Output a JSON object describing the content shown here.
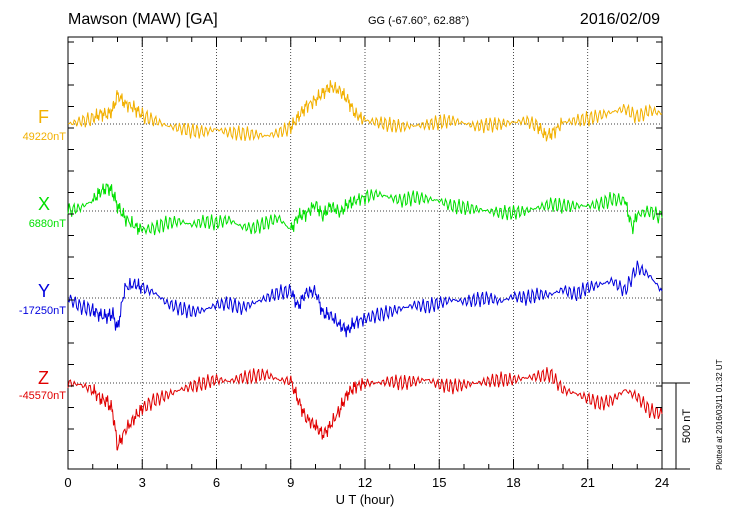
{
  "header": {
    "station": "Mawson (MAW)  [GA]",
    "coords": "GG (-67.60°,  62.88°)",
    "date": "2016/02/09"
  },
  "plotted_note": "Plotted at 2016/03/11 01:32 UT",
  "scale_label": "500 nT",
  "colors": {
    "F": "#f2b000",
    "X": "#00e000",
    "Y": "#0000dd",
    "Z": "#e00000"
  },
  "chart_data": {
    "type": "line",
    "xlabel": "U T (hour)",
    "xlim": [
      0,
      24
    ],
    "xticks": [
      "0",
      "3",
      "6",
      "9",
      "12",
      "15",
      "18",
      "21",
      "24"
    ],
    "grid": true,
    "scale_bar_nT": 500,
    "components": [
      {
        "letter": "F",
        "baseline_label": "49220nT",
        "baseline_nT": 49220
      },
      {
        "letter": "X",
        "baseline_label": "6880nT",
        "baseline_nT": 6880
      },
      {
        "letter": "Y",
        "baseline_label": "-17250nT",
        "baseline_nT": -17250
      },
      {
        "letter": "Z",
        "baseline_label": "-45570nT",
        "baseline_nT": -45570
      }
    ],
    "series": [
      {
        "name": "F",
        "x": [
          0,
          0.5,
          1,
          1.3,
          1.6,
          1.8,
          2.0,
          2.3,
          2.7,
          3.0,
          3.5,
          4,
          4.5,
          5,
          5.5,
          6,
          6.5,
          7,
          7.5,
          8,
          8.5,
          9,
          9.3,
          9.6,
          10,
          10.3,
          10.6,
          11,
          11.3,
          11.6,
          12,
          12.5,
          13,
          13.5,
          14,
          14.5,
          15,
          15.5,
          16,
          16.5,
          17,
          17.5,
          18,
          18.5,
          19,
          19.3,
          19.6,
          20,
          20.5,
          21,
          21.5,
          22,
          22.5,
          23,
          23.5,
          24
        ],
        "y": [
          0,
          15,
          30,
          60,
          55,
          80,
          170,
          120,
          90,
          50,
          20,
          -10,
          -25,
          -40,
          -45,
          -30,
          -50,
          -55,
          -60,
          -70,
          -50,
          -20,
          40,
          100,
          140,
          180,
          220,
          190,
          140,
          60,
          20,
          10,
          -5,
          -15,
          -10,
          -5,
          10,
          20,
          5,
          -15,
          -5,
          0,
          10,
          20,
          -15,
          -70,
          -50,
          10,
          20,
          30,
          50,
          70,
          90,
          40,
          80,
          60
        ]
      },
      {
        "name": "X",
        "x": [
          0,
          0.5,
          1,
          1.3,
          1.6,
          1.8,
          2.0,
          2.3,
          2.7,
          3.0,
          3.5,
          4,
          4.5,
          5,
          5.5,
          6,
          6.5,
          7,
          7.5,
          8,
          8.5,
          9,
          9.3,
          9.6,
          10,
          10.3,
          10.6,
          11,
          11.3,
          11.6,
          12,
          12.5,
          13,
          13.5,
          14,
          14.5,
          15,
          15.5,
          16,
          16.5,
          17,
          17.5,
          18,
          18.5,
          19,
          19.5,
          20,
          20.5,
          21,
          21.5,
          22,
          22.5,
          22.8,
          23,
          23.5,
          24
        ],
        "y": [
          0,
          20,
          60,
          110,
          140,
          110,
          30,
          -40,
          -90,
          -110,
          -100,
          -70,
          -60,
          -80,
          -60,
          -70,
          -50,
          -90,
          -100,
          -70,
          -40,
          -110,
          -30,
          -20,
          40,
          -30,
          30,
          -10,
          40,
          60,
          80,
          100,
          80,
          60,
          80,
          70,
          60,
          30,
          20,
          10,
          0,
          -10,
          -10,
          0,
          20,
          40,
          30,
          30,
          30,
          40,
          70,
          60,
          -100,
          -20,
          0,
          -40
        ]
      },
      {
        "name": "Y",
        "x": [
          0,
          0.5,
          1,
          1.3,
          1.6,
          1.8,
          2.0,
          2.3,
          2.7,
          3.0,
          3.5,
          4,
          4.5,
          5,
          5.5,
          6,
          6.5,
          7,
          7.5,
          8,
          8.5,
          9,
          9.3,
          9.6,
          10,
          10.3,
          10.6,
          11,
          11.3,
          11.6,
          12,
          12.5,
          13,
          13.5,
          14,
          14.5,
          15,
          15.5,
          16,
          16.5,
          17,
          17.5,
          18,
          18.5,
          19,
          19.5,
          20,
          20.5,
          21,
          21.5,
          22,
          22.5,
          23,
          23.5,
          24
        ],
        "y": [
          0,
          -50,
          -70,
          -100,
          -110,
          -90,
          -180,
          60,
          80,
          60,
          30,
          -30,
          -60,
          -80,
          -70,
          -40,
          -30,
          -60,
          -30,
          0,
          30,
          40,
          -50,
          30,
          40,
          -90,
          -100,
          -160,
          -190,
          -140,
          -120,
          -100,
          -80,
          -60,
          -40,
          -50,
          -30,
          -10,
          -20,
          -10,
          0,
          -20,
          10,
          0,
          20,
          20,
          50,
          20,
          60,
          80,
          100,
          40,
          180,
          130,
          40
        ]
      },
      {
        "name": "Z",
        "x": [
          0,
          0.5,
          1,
          1.3,
          1.6,
          1.8,
          2.0,
          2.3,
          2.7,
          3.0,
          3.5,
          4,
          4.5,
          5,
          5.5,
          6,
          6.5,
          7,
          7.5,
          8,
          8.5,
          9,
          9.3,
          9.6,
          10,
          10.3,
          10.6,
          11,
          11.3,
          11.6,
          12,
          12.5,
          13,
          13.5,
          14,
          14.5,
          15,
          15.5,
          16,
          16.5,
          17,
          17.5,
          18,
          18.5,
          19,
          19.5,
          20,
          20.5,
          21,
          21.5,
          22,
          22.5,
          23,
          23.5,
          24
        ],
        "y": [
          0,
          -10,
          -40,
          -90,
          -110,
          -160,
          -370,
          -280,
          -200,
          -150,
          -100,
          -70,
          -40,
          -20,
          0,
          20,
          10,
          30,
          40,
          50,
          20,
          10,
          -100,
          -200,
          -250,
          -300,
          -250,
          -150,
          -60,
          -20,
          0,
          0,
          10,
          0,
          10,
          20,
          -10,
          -20,
          -10,
          0,
          10,
          20,
          20,
          30,
          40,
          50,
          -40,
          -60,
          -90,
          -120,
          -100,
          -40,
          -80,
          -160,
          -180
        ]
      }
    ]
  }
}
